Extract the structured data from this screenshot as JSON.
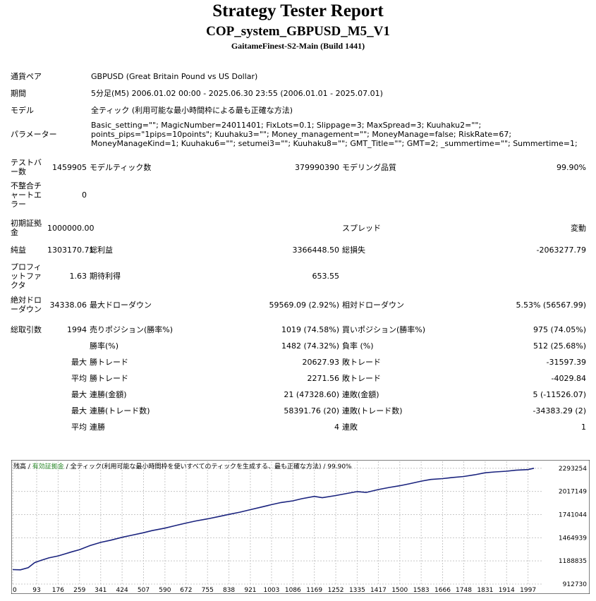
{
  "header": {
    "title": "Strategy Tester Report",
    "subtitle": "COP_system_GBPUSD_M5_V1",
    "server": "GaitameFinest-S2-Main (Build 1441)"
  },
  "info": {
    "pair_label": "通貨ペア",
    "pair_value": "GBPUSD (Great Britain Pound vs US Dollar)",
    "period_label": "期間",
    "period_value": "5分足(M5) 2006.01.02 00:00 - 2025.06.30 23:55 (2006.01.01 - 2025.07.01)",
    "model_label": "モデル",
    "model_value": "全ティック (利用可能な最小時間枠による最も正確な方法)",
    "params_label": "パラメーター",
    "params_value": "Basic_setting=\"\"; MagicNumber=24011401; FixLots=0.1; Slippage=3; MaxSpread=3; Kuuhaku2=\"\"; points_pips=\"1pips=10points\"; Kuuhaku3=\"\"; Money_management=\"\"; MoneyManage=false; RiskRate=67; MoneyManageKind=1; Kuuhaku6=\"\"; setumei3=\"\"; Kuuhaku8=\"\"; GMT_Title=\"\"; GMT=2; _summertime=\"\"; Summertime=1;"
  },
  "stats": {
    "bars_label": "テストバー数",
    "bars_value": "1459905",
    "ticks_label": "モデルティック数",
    "ticks_value": "379990390",
    "quality_label": "モデリング品質",
    "quality_value": "99.90%",
    "mismatch_label": "不整合チャートエラー",
    "mismatch_value": "0",
    "deposit_label": "初期証拠金",
    "deposit_value": "1000000.00",
    "spread_label": "スプレッド",
    "spread_value": "変動",
    "net_label": "純益",
    "net_value": "1303170.71",
    "gross_profit_label": "総利益",
    "gross_profit_value": "3366448.50",
    "gross_loss_label": "総損失",
    "gross_loss_value": "-2063277.79",
    "pf_label": "プロフィットファクタ",
    "pf_value": "1.63",
    "expected_label": "期待利得",
    "expected_value": "653.55",
    "abs_dd_label": "絶対ドローダウン",
    "abs_dd_value": "34338.06",
    "max_dd_label": "最大ドローダウン",
    "max_dd_value": "59569.09 (2.92%)",
    "rel_dd_label": "相対ドローダウン",
    "rel_dd_value": "5.53% (56567.99)",
    "trades_label": "総取引数",
    "trades_value": "1994",
    "short_label": "売りポジション(勝率%)",
    "short_value": "1019 (74.58%)",
    "long_label": "買いポジション(勝率%)",
    "long_value": "975 (74.05%)",
    "win_rate_label": "勝率(%)",
    "win_rate_value": "1482 (74.32%)",
    "loss_rate_label": "負率 (%)",
    "loss_rate_value": "512 (25.68%)",
    "max_label": "最大",
    "avg_label": "平均",
    "largest_win_label": "勝トレード",
    "largest_win_value": "20627.93",
    "largest_loss_label": "敗トレード",
    "largest_loss_value": "-31597.39",
    "avg_win_label": "勝トレード",
    "avg_win_value": "2271.56",
    "avg_loss_label": "敗トレード",
    "avg_loss_value": "-4029.84",
    "max_cons_wins_label": "連勝(金額)",
    "max_cons_wins_value": "21 (47328.60)",
    "max_cons_losses_label": "連敗(金額)",
    "max_cons_losses_value": "5 (-11526.07)",
    "max_cons_profit_label": "連勝(トレード数)",
    "max_cons_profit_value": "58391.76 (20)",
    "max_cons_loss_label": "連敗(トレード数)",
    "max_cons_loss_value": "-34383.29 (2)",
    "avg_cons_wins_label": "連勝",
    "avg_cons_wins_value": "4",
    "avg_cons_losses_label": "連敗",
    "avg_cons_losses_value": "1"
  },
  "chart_caption": {
    "balance": "残高",
    "sep1": " / ",
    "equity": "有効証拠金",
    "sep2": " / ",
    "model": "全ティック(利用可能な最小時間枠を使いすべてのティックを生成する、最も正確な方法)",
    "sep3": " / ",
    "quality": "99.90%"
  },
  "chart_data": {
    "type": "line",
    "x_ticks": [
      "0",
      "93",
      "176",
      "259",
      "341",
      "424",
      "507",
      "590",
      "672",
      "755",
      "838",
      "921",
      "1003",
      "1086",
      "1169",
      "1252",
      "1335",
      "1417",
      "1500",
      "1583",
      "1666",
      "1748",
      "1831",
      "1914",
      "1997"
    ],
    "y_ticks": [
      "2293254",
      "2017149",
      "1741044",
      "1464939",
      "1188835",
      "912730"
    ],
    "xlim": [
      0,
      2050
    ],
    "ylim": [
      912730,
      2376000
    ],
    "grid": true,
    "line_color": "#1a237e",
    "series": [
      {
        "x": [
          0,
          30,
          60,
          85,
          110,
          140,
          176,
          200,
          230,
          259,
          300,
          341,
          380,
          424,
          460,
          507,
          540,
          590,
          630,
          672,
          710,
          755,
          800,
          838,
          880,
          921,
          960,
          1003,
          1040,
          1086,
          1120,
          1169,
          1200,
          1252,
          1290,
          1335,
          1370,
          1417,
          1460,
          1500,
          1540,
          1583,
          1620,
          1666,
          1700,
          1748,
          1790,
          1831,
          1870,
          1914,
          1950,
          1997,
          2020
        ],
        "y": [
          1085000,
          1083000,
          1108000,
          1168000,
          1195000,
          1225000,
          1248000,
          1270000,
          1298000,
          1322000,
          1372000,
          1410000,
          1436000,
          1470000,
          1494000,
          1525000,
          1550000,
          1580000,
          1610000,
          1640000,
          1665000,
          1690000,
          1718000,
          1744000,
          1770000,
          1800000,
          1828000,
          1860000,
          1885000,
          1905000,
          1930000,
          1958000,
          1942000,
          1968000,
          1990000,
          2015000,
          2005000,
          2040000,
          2065000,
          2085000,
          2110000,
          2140000,
          2160000,
          2170000,
          2182000,
          2195000,
          2215000,
          2240000,
          2250000,
          2258000,
          2270000,
          2278000,
          2294000
        ]
      }
    ]
  }
}
